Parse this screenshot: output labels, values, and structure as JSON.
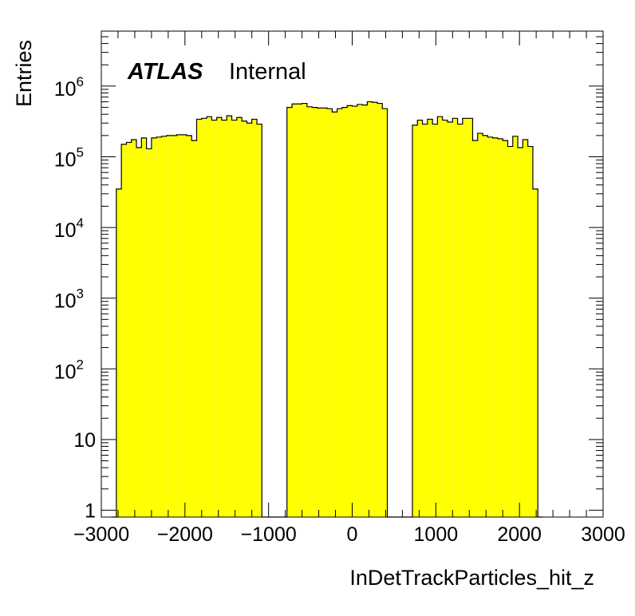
{
  "chart_data": {
    "type": "histogram",
    "xlabel": "InDetTrackParticles_hit_z",
    "ylabel": "Entries",
    "label_experiment": "ATLAS",
    "label_status": "Internal",
    "xlim": [
      -3000,
      3000
    ],
    "ylim": [
      0.8,
      6000000
    ],
    "yscale": "log",
    "x_ticks": [
      "−3000",
      "−2000",
      "−1000",
      "0",
      "1000",
      "2000",
      "3000"
    ],
    "x_tick_values": [
      -3000,
      -2000,
      -1000,
      0,
      1000,
      2000,
      3000
    ],
    "y_ticks": [
      {
        "value": 1,
        "base": "1",
        "exp": ""
      },
      {
        "value": 10,
        "base": "10",
        "exp": ""
      },
      {
        "value": 100,
        "base": "10",
        "exp": "2"
      },
      {
        "value": 1000,
        "base": "10",
        "exp": "3"
      },
      {
        "value": 10000,
        "base": "10",
        "exp": "4"
      },
      {
        "value": 100000,
        "base": "10",
        "exp": "5"
      },
      {
        "value": 1000000,
        "base": "10",
        "exp": "6"
      }
    ],
    "fill_color": "#ffff00",
    "line_color": "#000000",
    "bin_width": 60,
    "bin_edges_start": -2880,
    "values": [
      0,
      35000,
      150000,
      160000,
      175000,
      135000,
      185000,
      130000,
      185000,
      190000,
      195000,
      200000,
      200000,
      205000,
      205000,
      200000,
      170000,
      340000,
      350000,
      370000,
      330000,
      360000,
      330000,
      380000,
      330000,
      360000,
      320000,
      300000,
      340000,
      290000,
      0,
      0,
      0,
      0,
      0,
      500000,
      560000,
      560000,
      570000,
      510000,
      500000,
      490000,
      490000,
      480000,
      430000,
      480000,
      500000,
      530000,
      520000,
      550000,
      540000,
      600000,
      590000,
      570000,
      480000,
      0,
      0,
      0,
      0,
      0,
      280000,
      330000,
      290000,
      340000,
      290000,
      370000,
      330000,
      310000,
      350000,
      290000,
      350000,
      350000,
      170000,
      215000,
      200000,
      190000,
      185000,
      180000,
      170000,
      140000,
      195000,
      135000,
      175000,
      140000,
      35000,
      0
    ]
  }
}
